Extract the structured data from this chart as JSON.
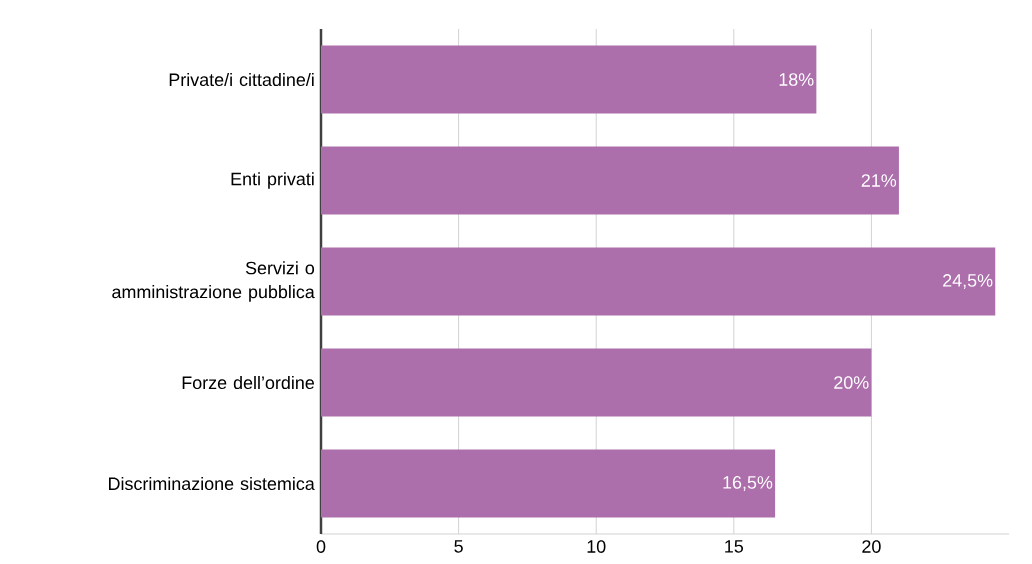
{
  "chart_data": {
    "type": "bar",
    "orientation": "horizontal",
    "categories": [
      "Private/i cittadine/i",
      "Enti privati",
      "Servizi o amministrazione pubblica",
      "Forze dell’ordine",
      "Discriminazione sistemica"
    ],
    "values": [
      18,
      21,
      24.5,
      20,
      16.5
    ],
    "value_labels": [
      "18%",
      "21%",
      "24,5%",
      "20%",
      "16,5%"
    ],
    "color": "#ad6fac",
    "xlim": [
      0,
      25
    ],
    "xticks": [
      0,
      5,
      10,
      15,
      20
    ],
    "grid": "x"
  }
}
